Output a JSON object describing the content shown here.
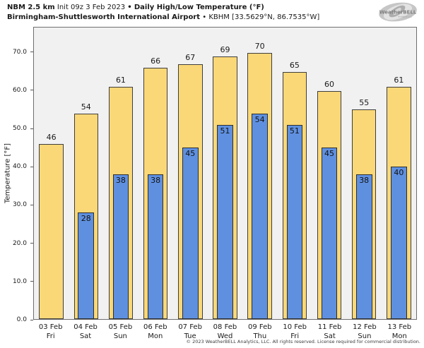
{
  "header": {
    "model": "NBM 2.5 km",
    "init": "Init 09z 3 Feb 2023",
    "sep": "•",
    "product": "Daily High/Low Temperature (°F)",
    "station": "Birmingham-Shuttlesworth International Airport",
    "station_id": "KBHM [33.5629°N, 86.7535°W]"
  },
  "logo": {
    "brand": "WeatherBELL",
    "brand_sub": "Analytics LLC"
  },
  "chart_data": {
    "type": "bar",
    "title": "NBM 2.5 km Init 09z 3 Feb 2023 • Daily High/Low Temperature (°F)",
    "subtitle": "Birmingham-Shuttlesworth International Airport • KBHM [33.5629°N, 86.7535°W]",
    "ylabel": "Temperature [°F]",
    "ylim": [
      0,
      76.6
    ],
    "yticks": [
      0,
      10,
      20,
      30,
      40,
      50,
      60,
      70
    ],
    "ytick_decimals": 1,
    "grid": false,
    "legend_position": "none",
    "plot_background": "#F1F1F1",
    "categories": [
      {
        "date": "03 Feb",
        "day": "Fri"
      },
      {
        "date": "04 Feb",
        "day": "Sat"
      },
      {
        "date": "05 Feb",
        "day": "Sun"
      },
      {
        "date": "06 Feb",
        "day": "Mon"
      },
      {
        "date": "07 Feb",
        "day": "Tue"
      },
      {
        "date": "08 Feb",
        "day": "Wed"
      },
      {
        "date": "09 Feb",
        "day": "Thu"
      },
      {
        "date": "10 Feb",
        "day": "Fri"
      },
      {
        "date": "11 Feb",
        "day": "Sat"
      },
      {
        "date": "12 Feb",
        "day": "Sun"
      },
      {
        "date": "13 Feb",
        "day": "Mon"
      }
    ],
    "series": [
      {
        "name": "Daily High",
        "color": "#FBD877",
        "edge_color": "#3D3D3D",
        "values": [
          46,
          54,
          61,
          66,
          67,
          69,
          70,
          65,
          60,
          55,
          61
        ]
      },
      {
        "name": "Daily Low",
        "color": "#5F90E0",
        "edge_color": "#2E2E2E",
        "values": [
          null,
          28,
          38,
          38,
          45,
          51,
          54,
          51,
          45,
          38,
          40
        ]
      }
    ]
  },
  "footer": {
    "copyright": "© 2023 WeatherBELL Analytics, LLC. All rights reserved. License required for commercial distribution."
  }
}
